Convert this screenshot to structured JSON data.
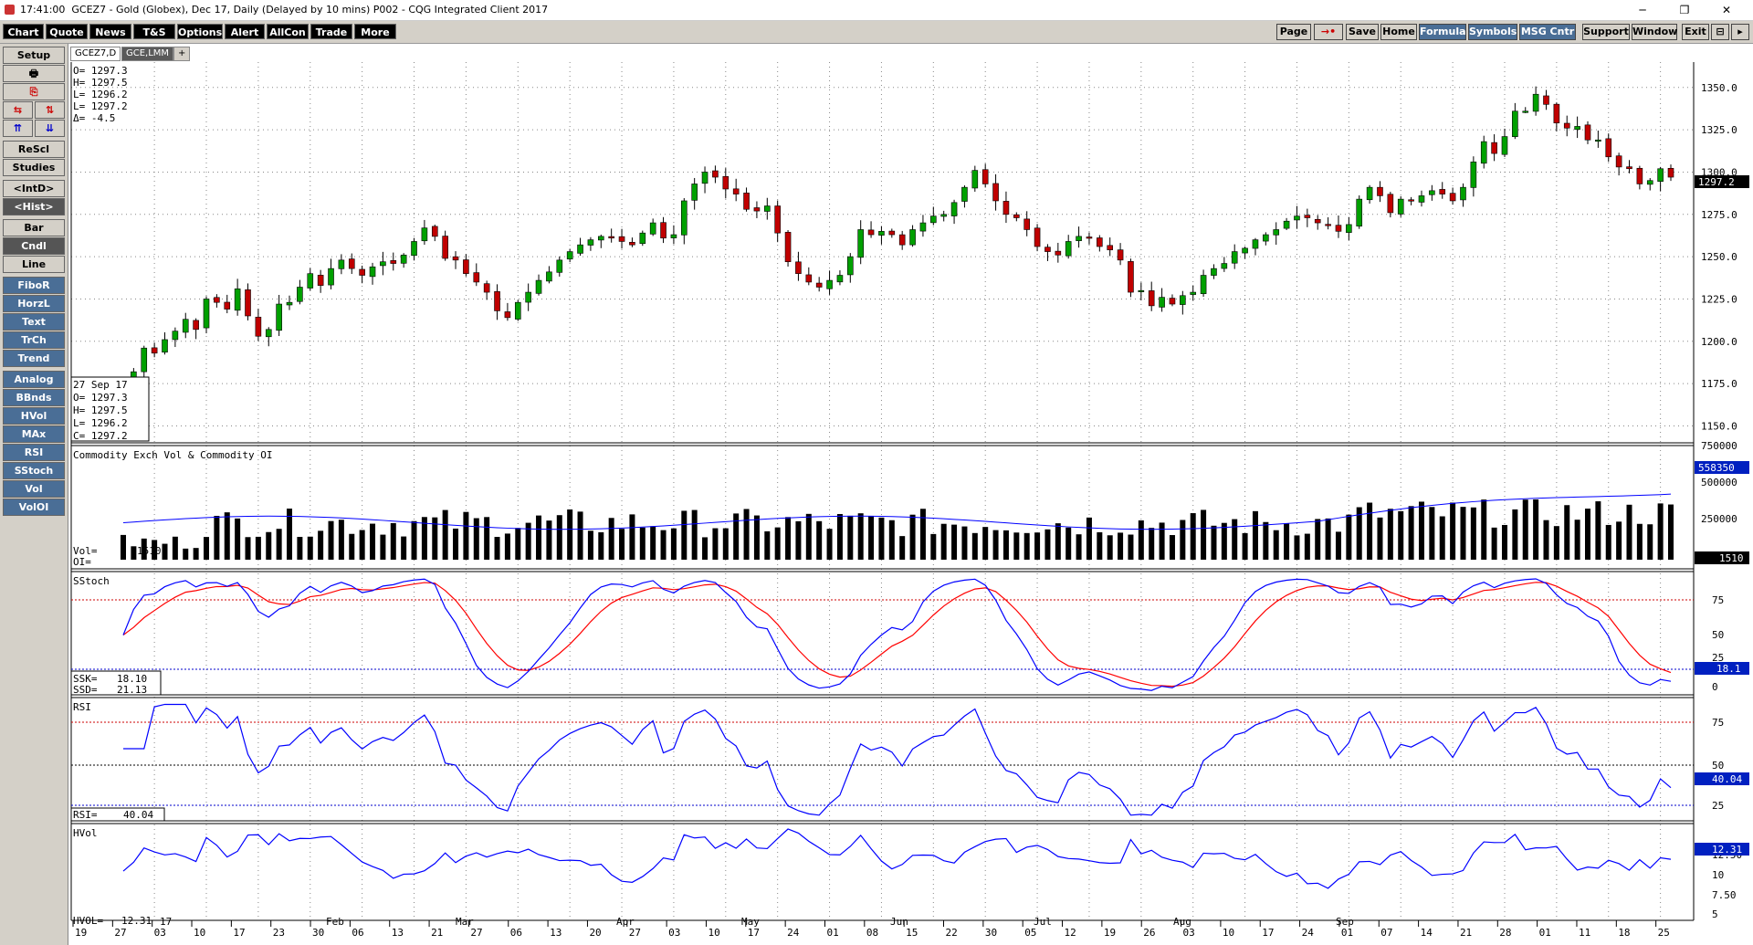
{
  "window": {
    "time": "17:41:00",
    "title": "GCEZ7 - Gold (Globex), Dec 17, Daily (Delayed by 10 mins)   P002 - CQG Integrated Client 2017",
    "controls": [
      "─",
      "❐",
      "✕"
    ]
  },
  "menu": {
    "left": [
      "Chart",
      "Quote",
      "News",
      "T&S",
      "Options",
      "Alert",
      "AllCon",
      "Trade",
      "More"
    ],
    "right": [
      "Page",
      "→•",
      "Save",
      "Home",
      "Formula",
      "Symbols",
      "MSG Cntr",
      "Support",
      "Window",
      "Exit",
      "⊟",
      "▸"
    ]
  },
  "toolbar": {
    "buttons": [
      "Setup",
      "🖶",
      "⎘",
      "⇆",
      "⇅",
      "⇈",
      "⇊",
      "ReScl",
      "Studies",
      "<IntD>",
      "<Hist>",
      "Bar",
      "Cndl",
      "Line",
      "FiboR",
      "HorzL",
      "Text",
      "TrCh",
      "Trend",
      "Analog",
      "BBnds",
      "HVol",
      "MAx",
      "RSI",
      "SStoch",
      "Vol",
      "VolOI"
    ]
  },
  "tabs": [
    "GCEZ7,D",
    "GCE,LMM",
    "+"
  ],
  "price_panel": {
    "ohlc_top": [
      "O=  1297.3",
      "H=  1297.5",
      "L=  1296.2",
      "L=  1297.2",
      "Δ=    -4.5"
    ],
    "info_box": [
      "27 Sep 17",
      "O=   1297.3",
      "H=   1297.5",
      "L=   1296.2",
      "C=   1297.2"
    ],
    "last_price": "1297.2",
    "y_ticks": [
      "1350.0",
      "1325.0",
      "1300.0",
      "1275.0",
      "1250.0",
      "1225.0",
      "1200.0",
      "1175.0",
      "1150.0"
    ]
  },
  "volume_panel": {
    "title": "Commodity Exch Vol & Commodity OI",
    "vol_label": "Vol=",
    "vol_value": "1510",
    "oi_label": "OI=",
    "y_ticks": [
      "750000",
      "500000",
      "250000"
    ],
    "oi_last": "558350",
    "vol_last": "1510"
  },
  "sstoch_panel": {
    "title": "SStoch",
    "ssk_label": "SSK=",
    "ssk_value": "18.10",
    "ssd_label": "SSD=",
    "ssd_value": "21.13",
    "y_ticks": [
      "75",
      "50",
      "25",
      "0"
    ],
    "last": "18.1"
  },
  "rsi_panel": {
    "title": "RSI",
    "rsi_label": "RSI=",
    "rsi_value": "40.04",
    "y_ticks": [
      "75",
      "50",
      "25"
    ],
    "last": "40.04"
  },
  "hvol_panel": {
    "title": "HVol",
    "label": "HVOL=",
    "value": "12.31",
    "y_ticks": [
      "12.50",
      "10",
      "7.50",
      "5"
    ],
    "last": "12.31"
  },
  "x_axis": {
    "day_labels": [
      "19",
      "27",
      "03",
      "10",
      "17",
      "23",
      "30",
      "06",
      "13",
      "21",
      "27",
      "06",
      "13",
      "20",
      "27",
      "03",
      "10",
      "17",
      "24",
      "01",
      "08",
      "15",
      "22",
      "30",
      "05",
      "12",
      "19",
      "26",
      "03",
      "10",
      "17",
      "24",
      "01",
      "07",
      "14",
      "21",
      "28",
      "01",
      "11",
      "18",
      "25"
    ],
    "month_labels": [
      "17",
      "Feb",
      "Mar",
      "Apr",
      "May",
      "Jun",
      "Jul",
      "Aug",
      "Sep"
    ]
  },
  "colors": {
    "up": "#00a000",
    "down": "#c00000",
    "stoch_k": "#0000ff",
    "stoch_d": "#ff0000",
    "accent_box": "#0020c0"
  },
  "chart_data": {
    "type": "candlestick",
    "ylim": [
      1140,
      1365
    ],
    "closes": [
      1172,
      1182,
      1196,
      1193,
      1201,
      1206,
      1213,
      1207,
      1225,
      1223,
      1219,
      1231,
      1215,
      1203,
      1207,
      1222,
      1223,
      1232,
      1240,
      1233,
      1243,
      1248,
      1243,
      1239,
      1244,
      1247,
      1246,
      1251,
      1259,
      1267,
      1262,
      1249,
      1248,
      1240,
      1235,
      1229,
      1218,
      1214,
      1223,
      1229,
      1236,
      1241,
      1248,
      1253,
      1257,
      1260,
      1262,
      1261,
      1259,
      1257,
      1264,
      1270,
      1261,
      1263,
      1283,
      1293,
      1300,
      1297,
      1290,
      1287,
      1278,
      1277,
      1280,
      1264,
      1247,
      1240,
      1235,
      1232,
      1236,
      1239,
      1250,
      1266,
      1263,
      1265,
      1263,
      1257,
      1266,
      1270,
      1274,
      1275,
      1282,
      1291,
      1301,
      1293,
      1283,
      1275,
      1273,
      1266,
      1256,
      1253,
      1251,
      1259,
      1262,
      1261,
      1256,
      1254,
      1248,
      1229,
      1230,
      1221,
      1226,
      1222,
      1227,
      1229,
      1239,
      1243,
      1246,
      1253,
      1255,
      1260,
      1263,
      1266,
      1271,
      1274,
      1273,
      1270,
      1269,
      1265,
      1269,
      1284,
      1291,
      1286,
      1276,
      1284,
      1283,
      1286,
      1289,
      1287,
      1283,
      1291,
      1306,
      1318,
      1311,
      1321,
      1336,
      1336,
      1346,
      1340,
      1329,
      1326,
      1327,
      1319,
      1319,
      1309,
      1303,
      1302,
      1293,
      1295,
      1302,
      1297
    ]
  }
}
